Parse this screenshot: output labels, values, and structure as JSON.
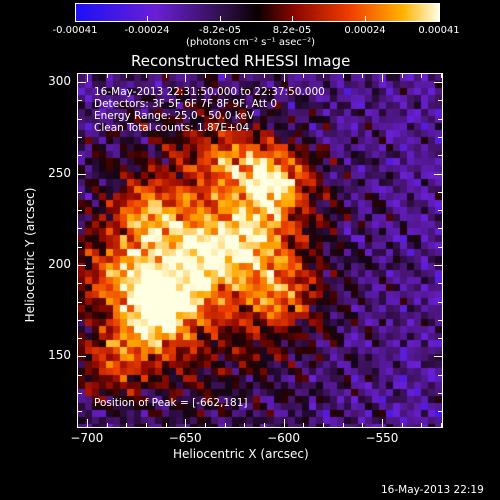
{
  "colorbar": {
    "ticks": [
      "-0.00041",
      "-0.00024",
      "-8.2e-05",
      "8.2e-05",
      "0.00024",
      "0.00041"
    ],
    "tick_values": [
      -0.00041,
      -0.00024,
      -8.2e-05,
      8.2e-05,
      0.00024,
      0.00041
    ],
    "units_line": "(photons cm⁻² s⁻¹ asec⁻²)",
    "range": [
      -0.00041,
      0.00041
    ]
  },
  "chart_data": {
    "type": "heatmap",
    "title": "Reconstructed RHESSI Image",
    "xlabel": "Heliocentric X (arcsec)",
    "ylabel": "Heliocentric Y (arcsec)",
    "xlim": [
      -705,
      -520
    ],
    "ylim": [
      112,
      305
    ],
    "x_ticks": [
      -700,
      -650,
      -600,
      -550
    ],
    "x_tick_labels": [
      "−700",
      "−650",
      "−600",
      "−550"
    ],
    "y_ticks": [
      150,
      200,
      250,
      300
    ],
    "y_tick_labels": [
      "150",
      "200",
      "250",
      "300"
    ],
    "annotations": [
      "16-May-2013 22:31:50.000 to 22:37:50.000",
      "Detectors: 3F 5F 6F 7F 8F 9F, Att 0",
      "Energy Range: 25.0 - 50.0 keV",
      "Clean    Total counts: 1.87E+04"
    ],
    "peak_label": "Position of Peak = [-662,181]",
    "peak_position": [
      -662,
      181
    ],
    "sources": [
      {
        "x": -662,
        "y": 181,
        "intensity": 1.0
      },
      {
        "x": -606,
        "y": 246,
        "intensity": 0.92
      },
      {
        "x": -668,
        "y": 226,
        "intensity": 0.62
      },
      {
        "x": -615,
        "y": 215,
        "intensity": 0.55
      },
      {
        "x": -640,
        "y": 205,
        "intensity": 0.6
      },
      {
        "x": -602,
        "y": 185,
        "intensity": 0.48
      },
      {
        "x": -686,
        "y": 195,
        "intensity": 0.52
      },
      {
        "x": -690,
        "y": 145,
        "intensity": 0.48
      },
      {
        "x": -672,
        "y": 162,
        "intensity": 0.45
      },
      {
        "x": -630,
        "y": 260,
        "intensity": 0.42
      }
    ]
  },
  "footer": {
    "timestamp": "16-May-2013 22:19"
  }
}
